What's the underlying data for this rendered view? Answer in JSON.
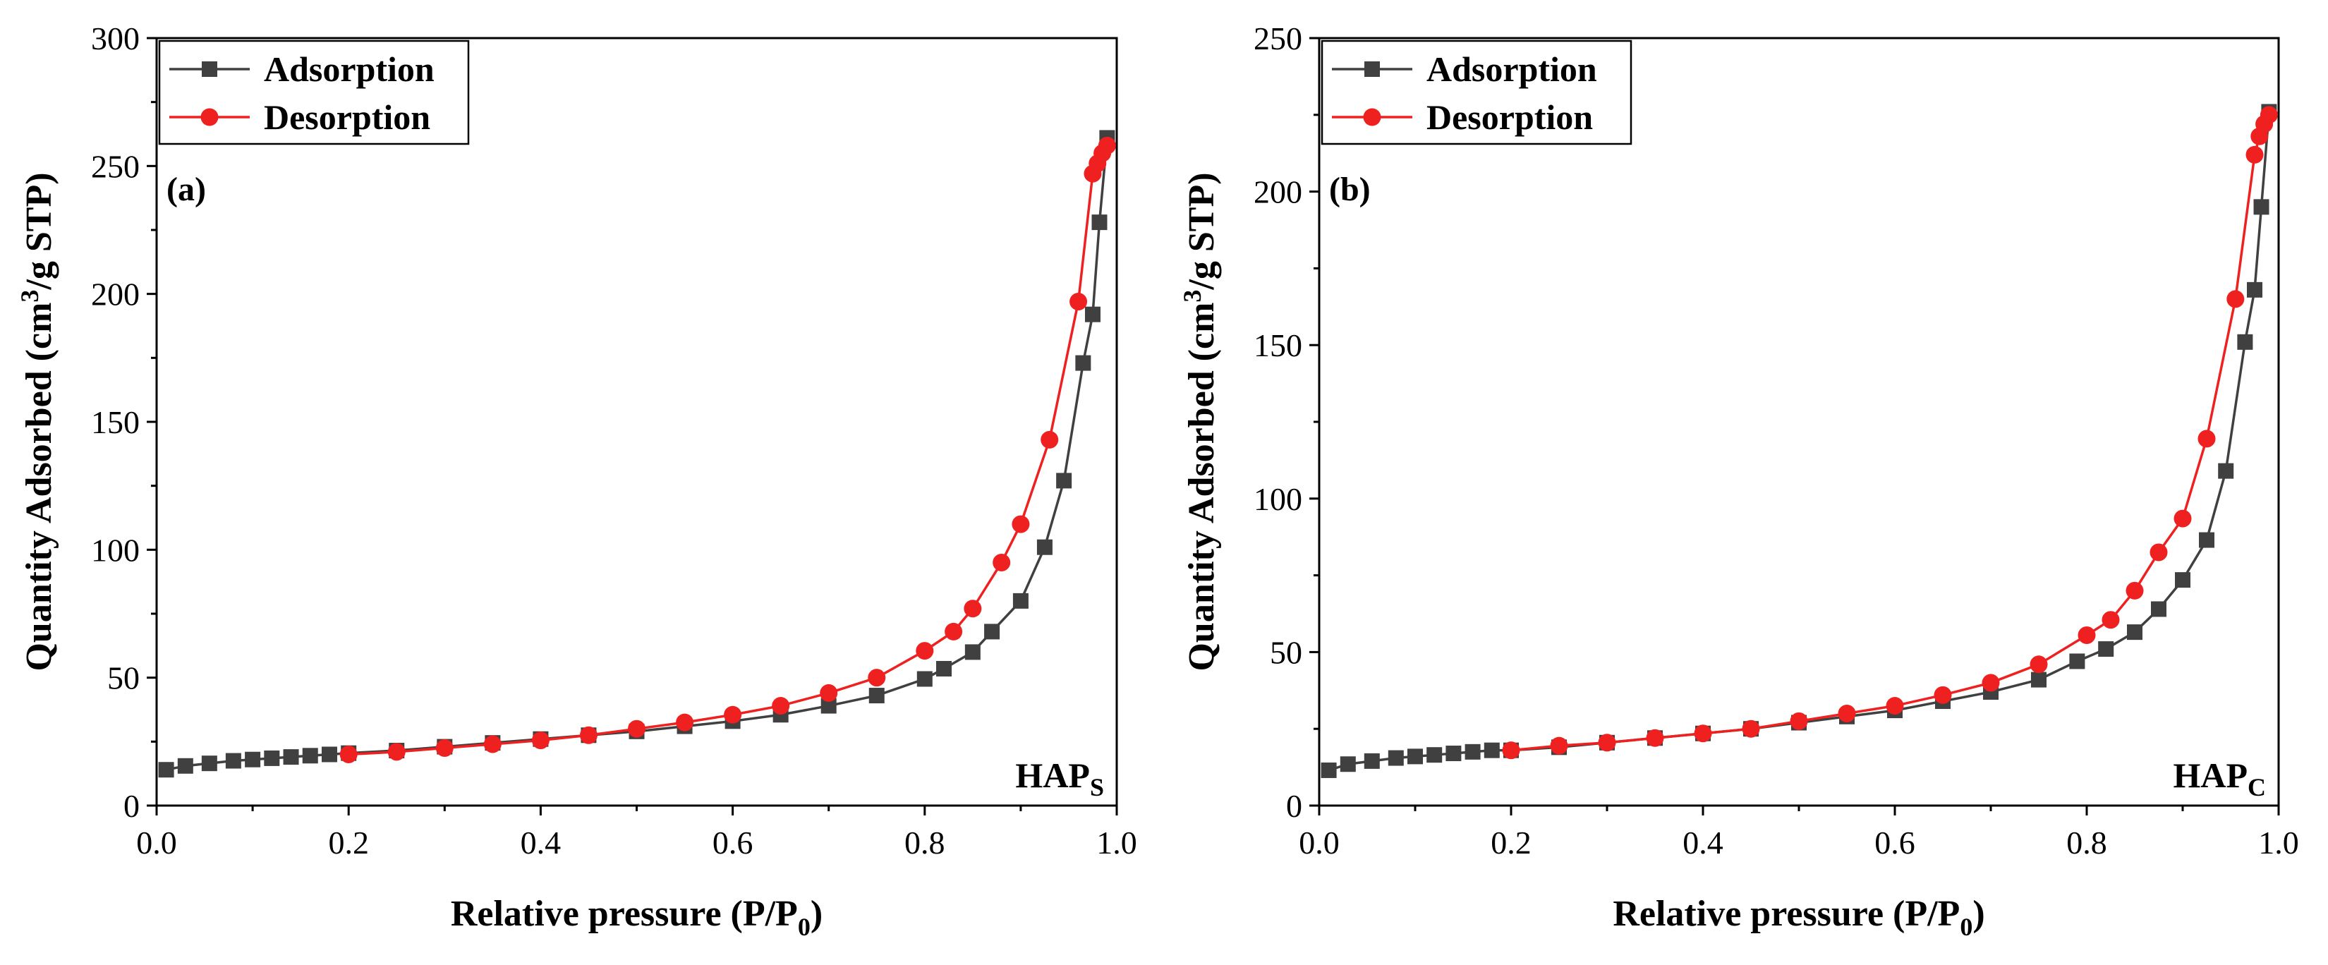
{
  "colors": {
    "adsorption": "#404040",
    "desorption": "#ee2020",
    "axis": "#000000"
  },
  "chart_data": [
    {
      "type": "line",
      "panel_label": "(a)",
      "sample_label": "HAP",
      "sample_subscript": "S",
      "xlabel": "Relative pressure (P/P",
      "xlabel_sub": "0",
      "xlabel_end": ")",
      "ylabel_pre": "Quantity Adsorbed (cm",
      "ylabel_sup": "3",
      "ylabel_post": "/g STP)",
      "xlim": [
        0.0,
        1.0
      ],
      "ylim": [
        0,
        300
      ],
      "xticks": [
        "0.0",
        "0.2",
        "0.4",
        "0.6",
        "0.8",
        "1.0"
      ],
      "yticks": [
        "0",
        "50",
        "100",
        "150",
        "200",
        "250",
        "300"
      ],
      "legend": [
        "Adsorption",
        "Desorption"
      ],
      "series": [
        {
          "name": "Adsorption",
          "marker": "square",
          "x": [
            0.01,
            0.03,
            0.055,
            0.08,
            0.1,
            0.12,
            0.14,
            0.16,
            0.18,
            0.2,
            0.25,
            0.3,
            0.35,
            0.4,
            0.45,
            0.5,
            0.55,
            0.6,
            0.65,
            0.7,
            0.75,
            0.8,
            0.82,
            0.85,
            0.87,
            0.9,
            0.925,
            0.945,
            0.965,
            0.975,
            0.982,
            0.99
          ],
          "y": [
            14,
            15.5,
            16.5,
            17.5,
            18,
            18.5,
            19,
            19.5,
            20,
            20.5,
            21.5,
            23,
            24.5,
            26,
            27.5,
            29,
            31,
            33,
            35.5,
            39,
            43,
            49.5,
            53.5,
            60,
            68,
            80,
            101,
            127,
            173,
            192,
            228,
            261
          ]
        },
        {
          "name": "Desorption",
          "marker": "circle",
          "x": [
            0.2,
            0.25,
            0.3,
            0.35,
            0.4,
            0.45,
            0.5,
            0.55,
            0.6,
            0.65,
            0.7,
            0.75,
            0.8,
            0.83,
            0.85,
            0.88,
            0.9,
            0.93,
            0.96,
            0.975,
            0.98,
            0.985,
            0.99
          ],
          "y": [
            20,
            21,
            22.5,
            24,
            25.5,
            27.5,
            30,
            32.5,
            35.5,
            39,
            44,
            50,
            60.5,
            68,
            77,
            95,
            110,
            143,
            197,
            247,
            251,
            255,
            258
          ]
        }
      ]
    },
    {
      "type": "line",
      "panel_label": "(b)",
      "sample_label": "HAP",
      "sample_subscript": "C",
      "xlabel": "Relative pressure (P/P",
      "xlabel_sub": "0",
      "xlabel_end": ")",
      "ylabel_pre": "Quantity Adsorbed (cm",
      "ylabel_sup": "3",
      "ylabel_post": "/g STP)",
      "xlim": [
        0.0,
        1.0
      ],
      "ylim": [
        0,
        250
      ],
      "xticks": [
        "0.0",
        "0.2",
        "0.4",
        "0.6",
        "0.8",
        "1.0"
      ],
      "yticks": [
        "0",
        "50",
        "100",
        "150",
        "200",
        "250"
      ],
      "legend": [
        "Adsorption",
        "Desorption"
      ],
      "series": [
        {
          "name": "Adsorption",
          "marker": "square",
          "x": [
            0.01,
            0.03,
            0.055,
            0.08,
            0.1,
            0.12,
            0.14,
            0.16,
            0.18,
            0.2,
            0.25,
            0.3,
            0.35,
            0.4,
            0.45,
            0.5,
            0.55,
            0.6,
            0.65,
            0.7,
            0.75,
            0.79,
            0.82,
            0.85,
            0.875,
            0.9,
            0.925,
            0.945,
            0.965,
            0.975,
            0.982,
            0.99
          ],
          "y": [
            11.5,
            13.5,
            14.5,
            15.5,
            16,
            16.5,
            17,
            17.5,
            18,
            18,
            19,
            20.5,
            22,
            23.5,
            25,
            27,
            29,
            31,
            34,
            37,
            41,
            47,
            51,
            56.5,
            64,
            73.5,
            86.5,
            109,
            151,
            168,
            195,
            226
          ]
        },
        {
          "name": "Desorption",
          "marker": "circle",
          "x": [
            0.2,
            0.25,
            0.3,
            0.35,
            0.4,
            0.45,
            0.5,
            0.55,
            0.6,
            0.65,
            0.7,
            0.75,
            0.8,
            0.825,
            0.85,
            0.875,
            0.9,
            0.925,
            0.955,
            0.975,
            0.98,
            0.985,
            0.99
          ],
          "y": [
            18,
            19.5,
            20.5,
            22,
            23.5,
            25,
            27.5,
            30,
            32.5,
            36,
            40,
            46,
            55.5,
            60.5,
            70,
            82.5,
            93.5,
            119.5,
            165,
            212,
            218,
            222,
            225
          ]
        }
      ]
    }
  ]
}
